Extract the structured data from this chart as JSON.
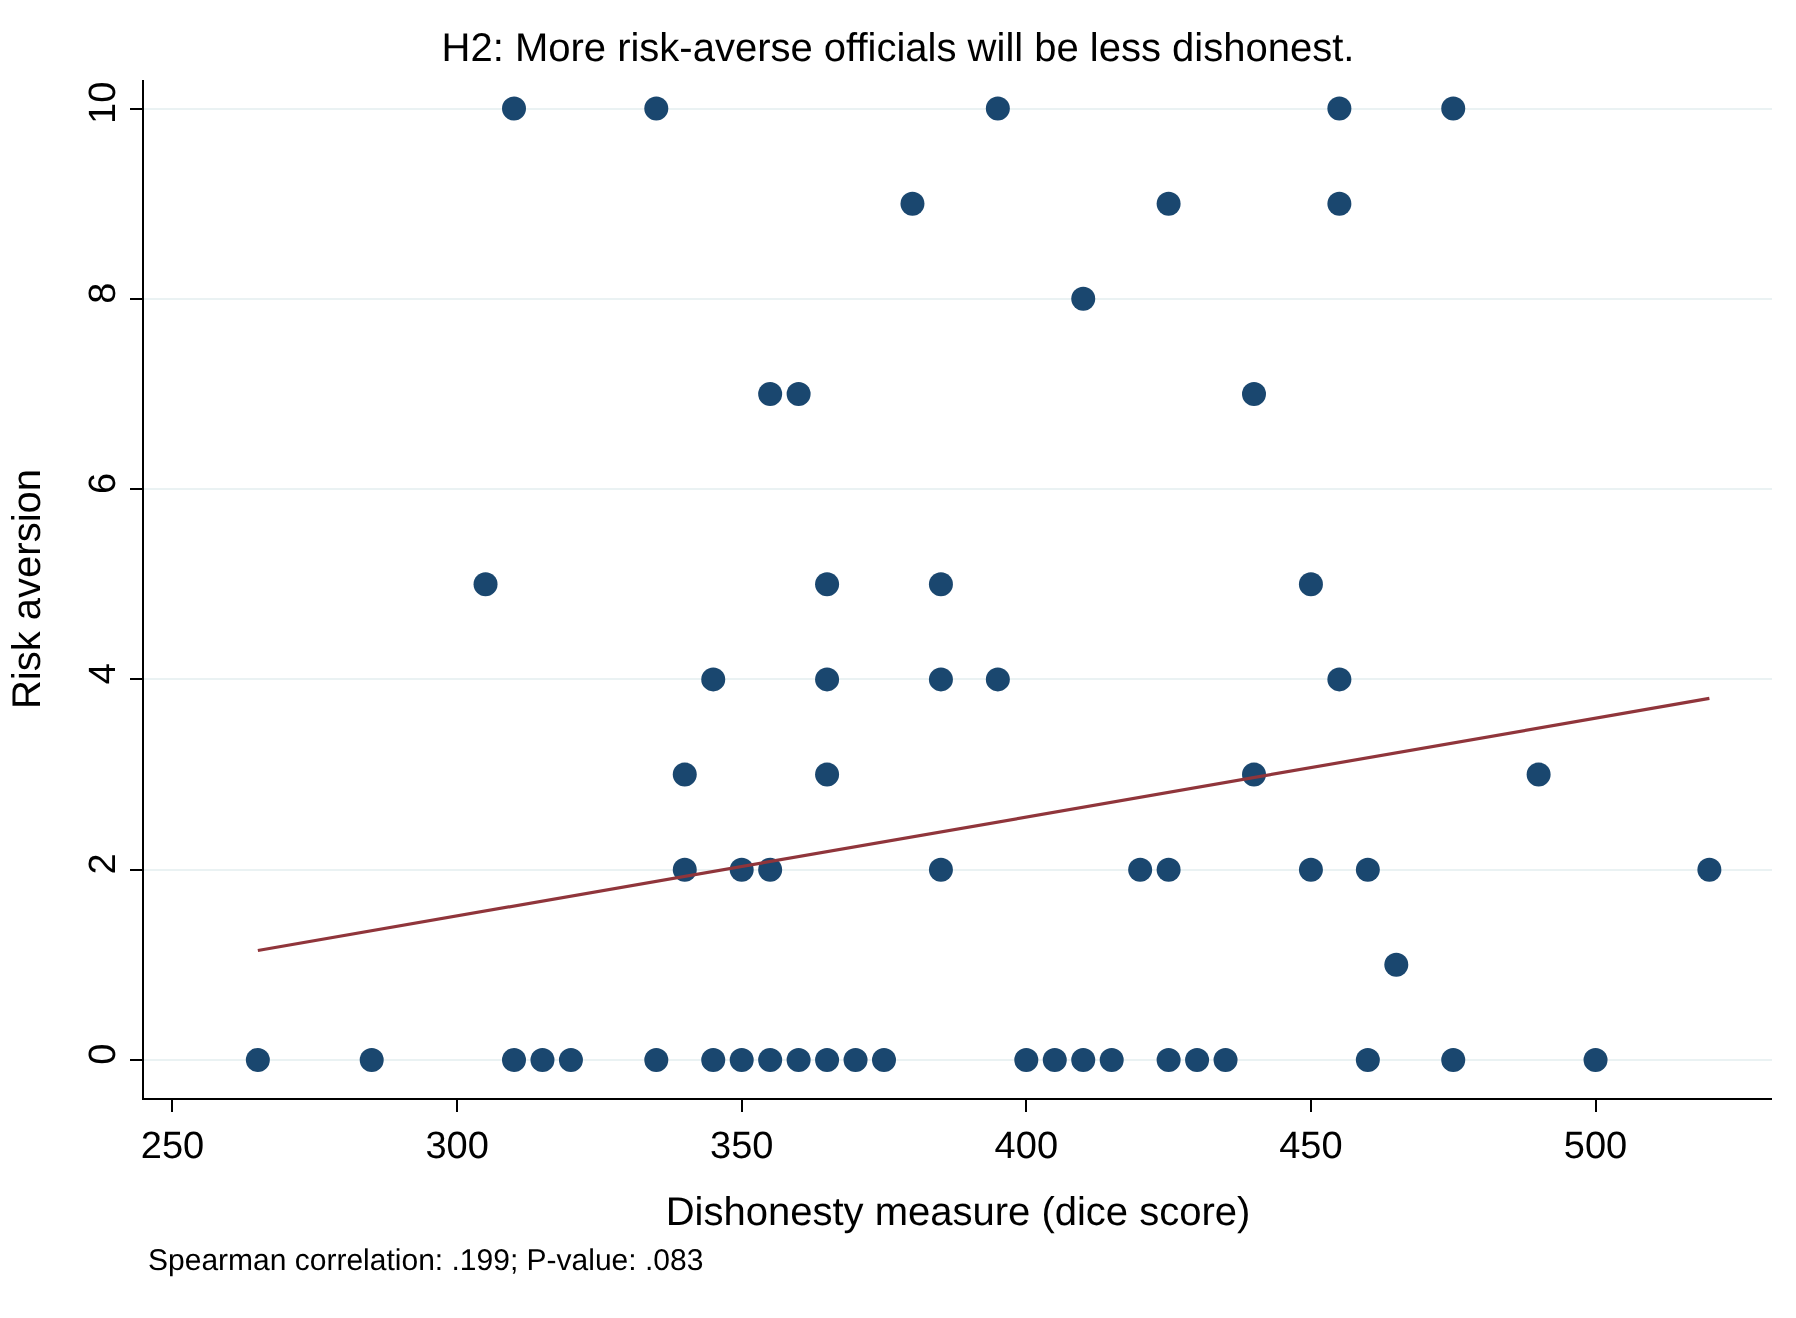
{
  "chart_data": {
    "type": "scatter",
    "title": "H2: More risk-averse officials will be less dishonest.",
    "xlabel": "Dishonesty measure (dice score)",
    "ylabel": "Risk aversion",
    "series": [
      {
        "color": "#1a476f",
        "marker": "circle",
        "x": [
          265,
          285,
          310,
          315,
          320,
          335,
          345,
          350,
          355,
          360,
          365,
          370,
          375,
          400,
          405,
          410,
          415,
          425,
          430,
          435,
          460,
          475,
          500,
          465,
          340,
          350,
          355,
          385,
          420,
          425,
          450,
          460,
          520,
          340,
          365,
          440,
          490,
          345,
          365,
          385,
          395,
          455,
          305,
          365,
          385,
          450,
          355,
          360,
          440,
          410,
          380,
          425,
          455,
          310,
          335,
          395,
          455,
          475
        ],
        "values": [
          0,
          0,
          0,
          0,
          0,
          0,
          0,
          0,
          0,
          0,
          0,
          0,
          0,
          0,
          0,
          0,
          0,
          0,
          0,
          0,
          0,
          0,
          0,
          1,
          2,
          2,
          2,
          2,
          2,
          2,
          2,
          2,
          2,
          3,
          3,
          3,
          3,
          4,
          4,
          4,
          4,
          4,
          5,
          5,
          5,
          5,
          7,
          7,
          7,
          8,
          9,
          9,
          9,
          10,
          10,
          10,
          10,
          10
        ]
      },
      {
        "type": "line",
        "color": "#90353b",
        "marker": "none",
        "line_style": "solid",
        "x": [
          265,
          520
        ],
        "values": [
          1.15,
          3.8
        ]
      }
    ],
    "xlim": [
      245,
      531
    ],
    "xticks": [
      250,
      300,
      350,
      400,
      450,
      500
    ],
    "ylim": [
      -0.4,
      10.3
    ],
    "yticks": [
      0,
      2,
      4,
      6,
      8,
      10
    ],
    "grid": "y",
    "annotations": [
      "Spearman correlation: .199; P-value: .083"
    ]
  }
}
